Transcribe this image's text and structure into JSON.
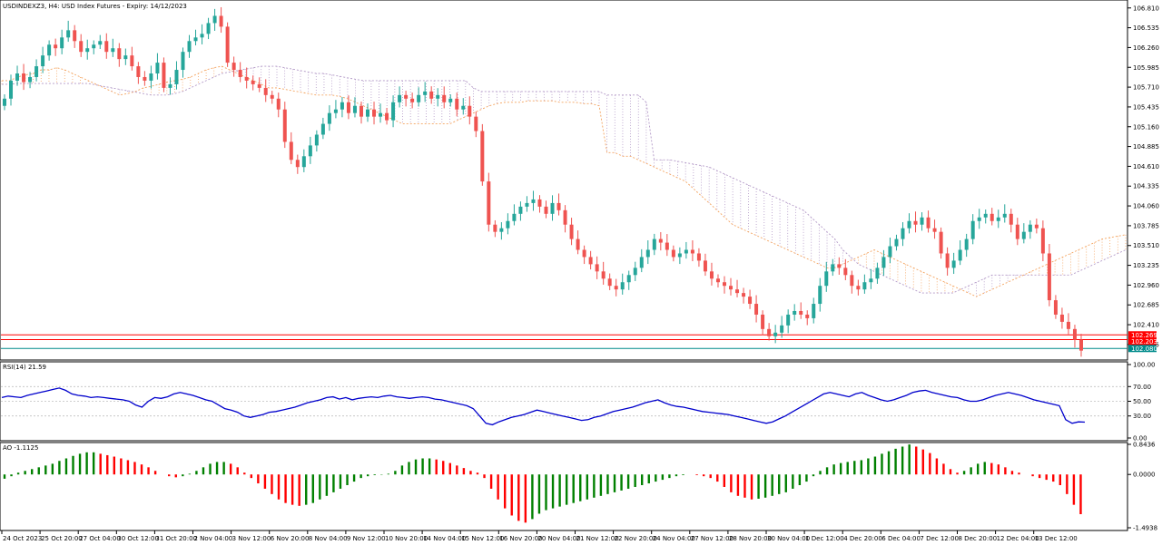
{
  "header": {
    "title": "USDINDEXZ3, H4:  USD Index Futures - Expiry: 14/12/2023"
  },
  "colors": {
    "bull": "#26a69a",
    "bear": "#ef5350",
    "rsi_line": "#0000cc",
    "hline_red": "#ff0000",
    "hline_teal": "#008b8b",
    "kumo_orange": "#f4a460",
    "kumo_violet": "#b399c7",
    "ao_up": "#008000",
    "ao_down": "#ff0000",
    "grid": "#c0c0c0"
  },
  "chart_data": [
    {
      "type": "candlestick",
      "name": "price",
      "title": "USDINDEXZ3, H4:  USD Index Futures - Expiry: 14/12/2023",
      "ylim": [
        101.97,
        106.87
      ],
      "y_ticks": [
        "106.810",
        "106.535",
        "106.260",
        "105.985",
        "105.710",
        "105.435",
        "105.160",
        "104.885",
        "104.610",
        "104.335",
        "104.060",
        "103.785",
        "103.510",
        "103.235",
        "102.960",
        "102.685",
        "102.410",
        "102.135"
      ],
      "price_labels": [
        {
          "text": "102.269",
          "value": 102.269,
          "style": "red"
        },
        {
          "text": "102.203",
          "value": 102.203,
          "style": "red"
        },
        {
          "text": "102.080",
          "value": 102.08,
          "style": "teal"
        }
      ],
      "horizontal_lines": [
        {
          "value": 102.269,
          "style": "red"
        },
        {
          "value": 102.203,
          "style": "red"
        },
        {
          "value": 102.08,
          "style": "teal"
        }
      ],
      "close_series": [
        105.55,
        105.8,
        105.9,
        105.78,
        105.85,
        106.0,
        106.15,
        106.3,
        106.25,
        106.4,
        106.5,
        106.35,
        106.2,
        106.25,
        106.3,
        106.35,
        106.2,
        106.25,
        106.1,
        106.15,
        106.0,
        105.85,
        105.8,
        105.9,
        106.05,
        105.7,
        105.75,
        105.95,
        106.2,
        106.35,
        106.4,
        106.45,
        106.6,
        106.7,
        106.55,
        106.05,
        105.95,
        105.85,
        105.8,
        105.75,
        105.7,
        105.6,
        105.55,
        105.4,
        104.95,
        104.7,
        104.6,
        104.75,
        104.9,
        105.05,
        105.2,
        105.35,
        105.4,
        105.5,
        105.35,
        105.45,
        105.3,
        105.4,
        105.3,
        105.35,
        105.25,
        105.5,
        105.6,
        105.55,
        105.5,
        105.6,
        105.65,
        105.55,
        105.6,
        105.5,
        105.55,
        105.4,
        105.45,
        105.3,
        105.1,
        104.4,
        103.8,
        103.7,
        103.75,
        103.85,
        103.95,
        104.05,
        104.1,
        104.15,
        104.05,
        103.95,
        104.1,
        104.0,
        103.8,
        103.6,
        103.45,
        103.35,
        103.25,
        103.15,
        103.05,
        102.95,
        102.9,
        103.0,
        103.1,
        103.2,
        103.35,
        103.45,
        103.6,
        103.55,
        103.45,
        103.35,
        103.4,
        103.45,
        103.4,
        103.3,
        103.15,
        103.05,
        103.0,
        102.95,
        102.9,
        102.85,
        102.8,
        102.7,
        102.55,
        102.35,
        102.25,
        102.3,
        102.4,
        102.55,
        102.6,
        102.55,
        102.5,
        102.7,
        102.95,
        103.15,
        103.25,
        103.2,
        103.1,
        102.95,
        102.9,
        103.0,
        103.05,
        103.2,
        103.35,
        103.5,
        103.6,
        103.75,
        103.85,
        103.8,
        103.9,
        103.75,
        103.7,
        103.4,
        103.2,
        103.3,
        103.45,
        103.6,
        103.85,
        103.9,
        103.95,
        103.85,
        103.9,
        103.95,
        103.8,
        103.6,
        103.7,
        103.8,
        103.75,
        103.4,
        102.75,
        102.55,
        102.45,
        102.35,
        102.2,
        102.05
      ],
      "kumo": {
        "span_a": [
          105.8,
          105.8,
          105.85,
          105.88,
          105.9,
          105.95,
          105.95,
          105.98,
          105.95,
          105.9,
          105.85,
          105.8,
          105.75,
          105.7,
          105.65,
          105.6,
          105.62,
          105.65,
          105.7,
          105.72,
          105.75,
          105.78,
          105.8,
          105.82,
          105.85,
          105.9,
          105.95,
          105.98,
          106.0,
          105.95,
          105.9,
          105.85,
          105.8,
          105.75,
          105.7,
          105.7,
          105.68,
          105.66,
          105.64,
          105.62,
          105.6,
          105.6,
          105.6,
          105.58,
          105.55,
          105.5,
          105.45,
          105.4,
          105.35,
          105.3,
          105.25,
          105.2,
          105.2,
          105.2,
          105.2,
          105.2,
          105.2,
          105.2,
          105.25,
          105.3,
          105.35,
          105.4,
          105.45,
          105.48,
          105.5,
          105.5,
          105.5,
          105.52,
          105.52,
          105.52,
          105.52,
          105.5,
          105.5,
          105.5,
          105.48,
          105.48,
          105.45,
          104.8,
          104.8,
          104.75,
          104.75,
          104.7,
          104.65,
          104.6,
          104.55,
          104.5,
          104.45,
          104.4,
          104.3,
          104.2,
          104.1,
          104.0,
          103.9,
          103.8,
          103.75,
          103.7,
          103.65,
          103.6,
          103.55,
          103.5,
          103.45,
          103.4,
          103.35,
          103.3,
          103.25,
          103.2,
          103.2,
          103.25,
          103.3,
          103.35,
          103.4,
          103.45,
          103.4,
          103.35,
          103.3,
          103.25,
          103.2,
          103.15,
          103.1,
          103.05,
          103.0,
          102.95,
          102.9,
          102.85,
          102.8,
          102.85,
          102.9,
          102.95,
          103.0,
          103.05,
          103.1,
          103.15,
          103.2,
          103.25,
          103.3,
          103.35,
          103.4,
          103.45,
          103.5,
          103.55,
          103.6,
          103.62,
          103.64,
          103.66
        ],
        "span_b": [
          105.75,
          105.75,
          105.76,
          105.76,
          105.76,
          105.76,
          105.76,
          105.76,
          105.76,
          105.76,
          105.76,
          105.76,
          105.74,
          105.72,
          105.7,
          105.68,
          105.66,
          105.64,
          105.62,
          105.6,
          105.6,
          105.6,
          105.62,
          105.65,
          105.7,
          105.75,
          105.8,
          105.85,
          105.9,
          105.92,
          105.94,
          105.96,
          105.98,
          106.0,
          106.0,
          106.0,
          105.98,
          105.96,
          105.94,
          105.92,
          105.9,
          105.9,
          105.88,
          105.86,
          105.84,
          105.82,
          105.8,
          105.8,
          105.8,
          105.8,
          105.8,
          105.8,
          105.8,
          105.8,
          105.8,
          105.8,
          105.8,
          105.8,
          105.8,
          105.8,
          105.7,
          105.65,
          105.65,
          105.65,
          105.65,
          105.65,
          105.65,
          105.65,
          105.65,
          105.65,
          105.65,
          105.65,
          105.65,
          105.65,
          105.65,
          105.65,
          105.65,
          105.6,
          105.6,
          105.6,
          105.6,
          105.6,
          105.5,
          104.7,
          104.7,
          104.7,
          104.68,
          104.66,
          104.64,
          104.62,
          104.6,
          104.55,
          104.5,
          104.45,
          104.4,
          104.35,
          104.3,
          104.25,
          104.2,
          104.15,
          104.1,
          104.05,
          104.0,
          103.9,
          103.8,
          103.7,
          103.6,
          103.45,
          103.35,
          103.25,
          103.2,
          103.15,
          103.1,
          103.05,
          103.0,
          102.95,
          102.9,
          102.85,
          102.85,
          102.85,
          102.85,
          102.85,
          102.9,
          102.95,
          103.0,
          103.05,
          103.1,
          103.1,
          103.1,
          103.1,
          103.1,
          103.1,
          103.1,
          103.1,
          103.1,
          103.1,
          103.1,
          103.15,
          103.2,
          103.25,
          103.3,
          103.35,
          103.4,
          103.45
        ]
      }
    },
    {
      "type": "line",
      "name": "rsi",
      "title": "RSI(14) 21.59",
      "ylim": [
        0,
        100
      ],
      "y_ticks": [
        "100.00",
        "70.00",
        "50.00",
        "30.00",
        "0.00"
      ],
      "levels": [
        70,
        50,
        30
      ],
      "series": [
        {
          "values": [
            55,
            57,
            56,
            55,
            58,
            60,
            62,
            64,
            66,
            68,
            65,
            60,
            58,
            57,
            55,
            56,
            55,
            54,
            53,
            52,
            50,
            45,
            42,
            50,
            55,
            54,
            56,
            60,
            62,
            60,
            58,
            55,
            52,
            50,
            45,
            40,
            38,
            35,
            30,
            28,
            30,
            32,
            35,
            36,
            38,
            40,
            42,
            45,
            48,
            50,
            52,
            55,
            56,
            53,
            55,
            52,
            54,
            55,
            56,
            55,
            57,
            58,
            56,
            55,
            54,
            55,
            56,
            55,
            53,
            52,
            50,
            48,
            46,
            44,
            40,
            30,
            20,
            18,
            22,
            25,
            28,
            30,
            32,
            35,
            38,
            36,
            34,
            32,
            30,
            28,
            26,
            24,
            25,
            28,
            30,
            33,
            36,
            38,
            40,
            42,
            45,
            48,
            50,
            52,
            48,
            45,
            43,
            42,
            40,
            38,
            36,
            35,
            34,
            33,
            32,
            30,
            28,
            26,
            24,
            22,
            20,
            22,
            26,
            30,
            35,
            40,
            45,
            50,
            55,
            60,
            62,
            60,
            58,
            56,
            60,
            62,
            58,
            55,
            52,
            50,
            52,
            55,
            58,
            62,
            64,
            65,
            62,
            60,
            58,
            56,
            55,
            52,
            50,
            50,
            52,
            55,
            58,
            60,
            62,
            60,
            58,
            55,
            52,
            50,
            48,
            46,
            44,
            25,
            20,
            22,
            21.59
          ]
        }
      ]
    },
    {
      "type": "bar",
      "name": "ao",
      "title": "AO -1.1125",
      "ylim": [
        -1.4938,
        0.8436
      ],
      "y_ticks": [
        "0.8436",
        "0.0000",
        "-1.4938"
      ],
      "values": [
        -0.12,
        -0.05,
        0.05,
        0.1,
        0.15,
        0.2,
        0.25,
        0.3,
        0.38,
        0.45,
        0.52,
        0.58,
        0.62,
        0.62,
        0.58,
        0.54,
        0.5,
        0.45,
        0.4,
        0.35,
        0.28,
        0.2,
        0.1,
        0.0,
        -0.05,
        -0.08,
        -0.05,
        0.02,
        0.1,
        0.2,
        0.3,
        0.35,
        0.35,
        0.3,
        0.2,
        0.05,
        -0.1,
        -0.25,
        -0.4,
        -0.55,
        -0.7,
        -0.8,
        -0.85,
        -0.88,
        -0.85,
        -0.8,
        -0.7,
        -0.6,
        -0.5,
        -0.4,
        -0.3,
        -0.2,
        -0.1,
        -0.05,
        -0.02,
        -0.01,
        0.02,
        0.1,
        0.25,
        0.35,
        0.42,
        0.45,
        0.45,
        0.42,
        0.38,
        0.32,
        0.25,
        0.18,
        0.1,
        0.05,
        -0.1,
        -0.4,
        -0.7,
        -0.95,
        -1.15,
        -1.3,
        -1.35,
        -1.25,
        -1.1,
        -1.0,
        -0.95,
        -0.9,
        -0.85,
        -0.8,
        -0.75,
        -0.7,
        -0.65,
        -0.6,
        -0.55,
        -0.5,
        -0.45,
        -0.4,
        -0.35,
        -0.3,
        -0.25,
        -0.2,
        -0.15,
        -0.1,
        -0.05,
        -0.02,
        0.0,
        -0.02,
        -0.05,
        -0.1,
        -0.2,
        -0.35,
        -0.5,
        -0.6,
        -0.65,
        -0.7,
        -0.68,
        -0.65,
        -0.6,
        -0.55,
        -0.5,
        -0.4,
        -0.3,
        -0.2,
        -0.05,
        0.1,
        0.2,
        0.28,
        0.32,
        0.35,
        0.38,
        0.4,
        0.45,
        0.5,
        0.58,
        0.65,
        0.72,
        0.78,
        0.84,
        0.78,
        0.7,
        0.6,
        0.45,
        0.3,
        0.15,
        0.05,
        0.1,
        0.2,
        0.3,
        0.35,
        0.32,
        0.28,
        0.2,
        0.1,
        0.05,
        0.0,
        -0.05,
        -0.1,
        -0.15,
        -0.2,
        -0.3,
        -0.55,
        -0.85,
        -1.1125
      ]
    }
  ],
  "x_axis": {
    "labels": [
      "24 Oct 2023",
      "25 Oct 20:00",
      "27 Oct 04:00",
      "30 Oct 12:00",
      "31 Oct 20:00",
      "2 Nov 04:00",
      "3 Nov 12:00",
      "6 Nov 20:00",
      "8 Nov 04:00",
      "9 Nov 12:00",
      "10 Nov 20:00",
      "14 Nov 04:00",
      "15 Nov 12:00",
      "16 Nov 20:00",
      "20 Nov 04:00",
      "21 Nov 12:00",
      "22 Nov 20:00",
      "24 Nov 04:00",
      "27 Nov 12:00",
      "28 Nov 20:00",
      "30 Nov 04:00",
      "1 Dec 12:00",
      "4 Dec 20:00",
      "6 Dec 04:00",
      "7 Dec 12:00",
      "8 Dec 20:00",
      "12 Dec 04:00",
      "13 Dec 12:00"
    ]
  }
}
